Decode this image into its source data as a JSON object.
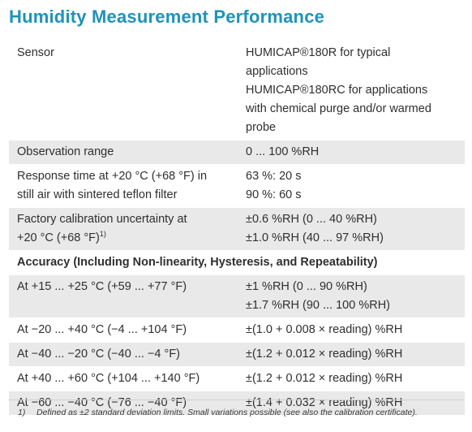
{
  "title": "Humidity Measurement Performance",
  "rows": [
    {
      "label": [
        "Sensor"
      ],
      "value": [
        "HUMICAP®180R for typical",
        "applications",
        "HUMICAP®180RC for applications",
        "with chemical purge and/or warmed",
        "probe"
      ]
    },
    {
      "label": [
        "Observation range"
      ],
      "value": [
        "0 ... 100 %RH"
      ]
    },
    {
      "label": [
        "Response time at +20 °C (+68 °F) in",
        "still air with sintered teflon filter"
      ],
      "value": [
        "63 %: 20 s",
        "90 %: 60 s"
      ]
    },
    {
      "label": [
        "Factory calibration uncertainty at",
        "+20 °C (+68 °F)"
      ],
      "label_sup": "1)",
      "value": [
        "±0.6 %RH (0 ... 40 %RH)",
        "±1.0 %RH (40 ... 97 %RH)"
      ]
    }
  ],
  "section_heading": "Accuracy (Including Non-linearity, Hysteresis, and Repeatability)",
  "accuracy_rows": [
    {
      "label": "At +15 ... +25 °C (+59 ... +77 °F)",
      "value": [
        "±1 %RH (0 ... 90 %RH)",
        "±1.7 %RH (90 ... 100 %RH)"
      ]
    },
    {
      "label": "At −20 ... +40 °C (−4 ... +104 °F)",
      "value": [
        "±(1.0 + 0.008 × reading) %RH"
      ]
    },
    {
      "label": "At −40 ... −20 °C (−40 ... −4 °F)",
      "value": [
        "±(1.2 + 0.012 × reading) %RH"
      ]
    },
    {
      "label": "At +40 ... +60 °C (+104 ... +140 °F)",
      "value": [
        "±(1.2 + 0.012 × reading) %RH"
      ]
    },
    {
      "label": "At −60 ... −40 °C (−76 ... −40 °F)",
      "value": [
        "±(1.4 + 0.032 × reading) %RH"
      ]
    }
  ],
  "footnote": {
    "mark": "1)",
    "text": "Defined as ±2 standard deviation limits. Small variations possible (see also the calibration certificate)."
  }
}
